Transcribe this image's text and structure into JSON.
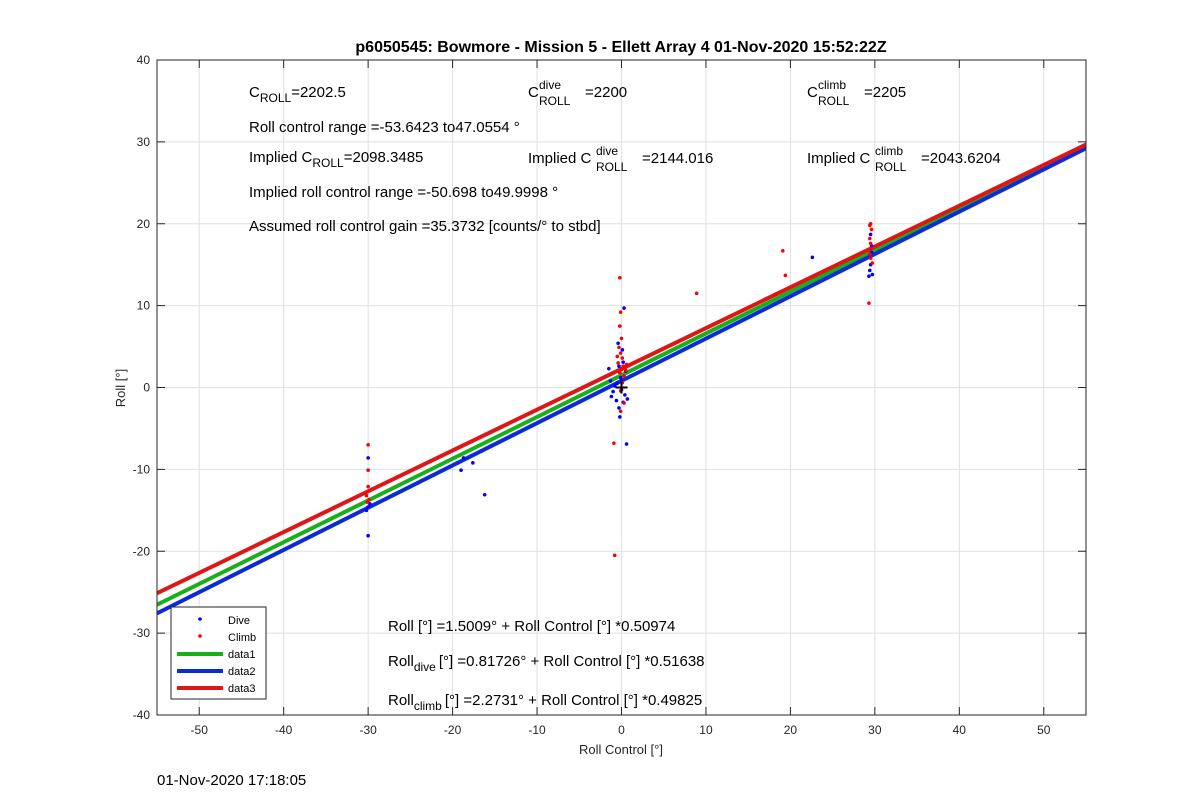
{
  "chart_data": {
    "type": "scatter",
    "title": "p6050545: Bowmore - Mission 5 - Ellett Array 4 01-Nov-2020 15:52:22Z",
    "xlabel": "Roll Control [°]",
    "ylabel": "Roll [°]",
    "xlim": [
      -55,
      55
    ],
    "ylim": [
      -40,
      40
    ],
    "xticks": [
      -50,
      -40,
      -30,
      -20,
      -10,
      0,
      10,
      20,
      30,
      40,
      50
    ],
    "yticks": [
      -40,
      -30,
      -20,
      -10,
      0,
      10,
      20,
      30,
      40
    ],
    "grid": true,
    "legend_position": "bottom-left",
    "annotations": {
      "c_roll": "C",
      "c_roll_sub": "ROLL",
      "c_roll_val": "=2202.5",
      "c_dive": "C",
      "c_dive_sup": "dive",
      "c_dive_sub": "ROLL",
      "c_dive_val": "=2200",
      "c_climb": "C",
      "c_climb_sup": "climb",
      "c_climb_sub": "ROLL",
      "c_climb_val": "=2205",
      "roll_range": "Roll control range =-53.6423 to47.0554 °",
      "implied_c_roll_prefix": "Implied C",
      "implied_c_roll_sub": "ROLL",
      "implied_c_roll_val": "=2098.3485",
      "implied_c_dive_prefix": "Implied C",
      "implied_c_dive_sup": "dive",
      "implied_c_dive_sub": "ROLL",
      "implied_c_dive_val": "=2144.016",
      "implied_c_climb_prefix": "Implied C",
      "implied_c_climb_sup": "climb",
      "implied_c_climb_sub": "ROLL",
      "implied_c_climb_val": "=2043.6204",
      "implied_range": "Implied roll control range =-50.698 to49.9998 °",
      "gain": "Assumed roll control gain =35.3732 [counts/° to stbd]",
      "fit_all": "Roll [°] =1.5009° + Roll Control [°] *0.50974",
      "fit_dive_prefix": "Roll",
      "fit_dive_sub": "dive",
      "fit_dive_rest": "[°] =0.81726° + Roll Control [°] *0.51638",
      "fit_climb_prefix": "Roll",
      "fit_climb_sub": "climb",
      "fit_climb_rest": "[°] =2.2731° + Roll Control [°] *0.49825"
    },
    "series": [
      {
        "name": "Dive",
        "style": "points",
        "color": "#0000ff",
        "points": [
          [
            -30,
            -18.1
          ],
          [
            -30.2,
            -15
          ],
          [
            -30,
            -14.6
          ],
          [
            -29.8,
            -14.2
          ],
          [
            -30,
            -8.6
          ],
          [
            -19,
            -10.1
          ],
          [
            -18.7,
            -8.6
          ],
          [
            -17.6,
            -9.2
          ],
          [
            -16.2,
            -13.1
          ],
          [
            -1.5,
            2.3
          ],
          [
            -1.3,
            0.8
          ],
          [
            -1.2,
            -1.1
          ],
          [
            -1,
            -0.5
          ],
          [
            -0.8,
            0.2
          ],
          [
            -0.6,
            -1.6
          ],
          [
            -0.5,
            0.5
          ],
          [
            -0.4,
            5.4
          ],
          [
            -0.3,
            -2.5
          ],
          [
            -0.2,
            -3.6
          ],
          [
            -0.1,
            1.2
          ],
          [
            0,
            -0.3
          ],
          [
            0,
            0.8
          ],
          [
            0.1,
            4.6
          ],
          [
            0.2,
            -1.8
          ],
          [
            0.3,
            9.7
          ],
          [
            0.4,
            -0.9
          ],
          [
            0.5,
            2
          ],
          [
            0.6,
            -6.9
          ],
          [
            0.7,
            -1.4
          ],
          [
            0.2,
            3.1
          ],
          [
            -0.3,
            2.6
          ],
          [
            22.6,
            15.9
          ],
          [
            29.3,
            13.6
          ],
          [
            29.4,
            14.3
          ],
          [
            29.5,
            15
          ],
          [
            29.6,
            16.5
          ],
          [
            29.7,
            13.8
          ],
          [
            29.5,
            18.7
          ],
          [
            29.6,
            17.3
          ]
        ]
      },
      {
        "name": "Climb",
        "style": "points",
        "color": "#ff0000",
        "points": [
          [
            -30,
            -7
          ],
          [
            -30,
            -10.1
          ],
          [
            -30,
            -12.1
          ],
          [
            -30.2,
            -13.2
          ],
          [
            -29.9,
            -13.7
          ],
          [
            -30.1,
            -14
          ],
          [
            -0.8,
            -20.5
          ],
          [
            -0.9,
            -6.8
          ],
          [
            -0.2,
            13.4
          ],
          [
            -0.1,
            9.2
          ],
          [
            -0.2,
            7.5
          ],
          [
            0,
            6
          ],
          [
            -0.3,
            4.9
          ],
          [
            -0.1,
            4.2
          ],
          [
            0.1,
            3.6
          ],
          [
            -0.4,
            3
          ],
          [
            0.2,
            2.6
          ],
          [
            0,
            2.2
          ],
          [
            -0.2,
            1.8
          ],
          [
            0.3,
            1.4
          ],
          [
            0.1,
            0.6
          ],
          [
            -0.1,
            -0.4
          ],
          [
            0.3,
            -1.9
          ],
          [
            -0.1,
            -2.9
          ],
          [
            0.5,
            2.1
          ],
          [
            0.6,
            2.8
          ],
          [
            -0.5,
            3.8
          ],
          [
            8.9,
            11.5
          ],
          [
            18.3,
            11.4
          ],
          [
            19.1,
            16.7
          ],
          [
            19.4,
            13.7
          ],
          [
            29.3,
            10.3
          ],
          [
            29.4,
            19.8
          ],
          [
            29.5,
            20
          ],
          [
            29.6,
            19.3
          ],
          [
            29.4,
            18.2
          ],
          [
            29.5,
            17.6
          ],
          [
            29.6,
            17
          ],
          [
            29.4,
            16.3
          ],
          [
            29.7,
            15.2
          ],
          [
            29.5,
            15.8
          ]
        ]
      },
      {
        "name": "data1",
        "style": "line",
        "color": "#18b01a",
        "intercept": 1.5009,
        "slope": 0.50974
      },
      {
        "name": "data2",
        "style": "line",
        "color": "#0a2cd8",
        "intercept": 0.81726,
        "slope": 0.51638
      },
      {
        "name": "data3",
        "style": "line",
        "color": "#de1616",
        "intercept": 2.2731,
        "slope": 0.49825
      }
    ],
    "marker": {
      "x": 0,
      "y": 0,
      "shape": "plus",
      "color": "#000000"
    }
  },
  "footer": {
    "timestamp": "01-Nov-2020 17:18:05"
  }
}
